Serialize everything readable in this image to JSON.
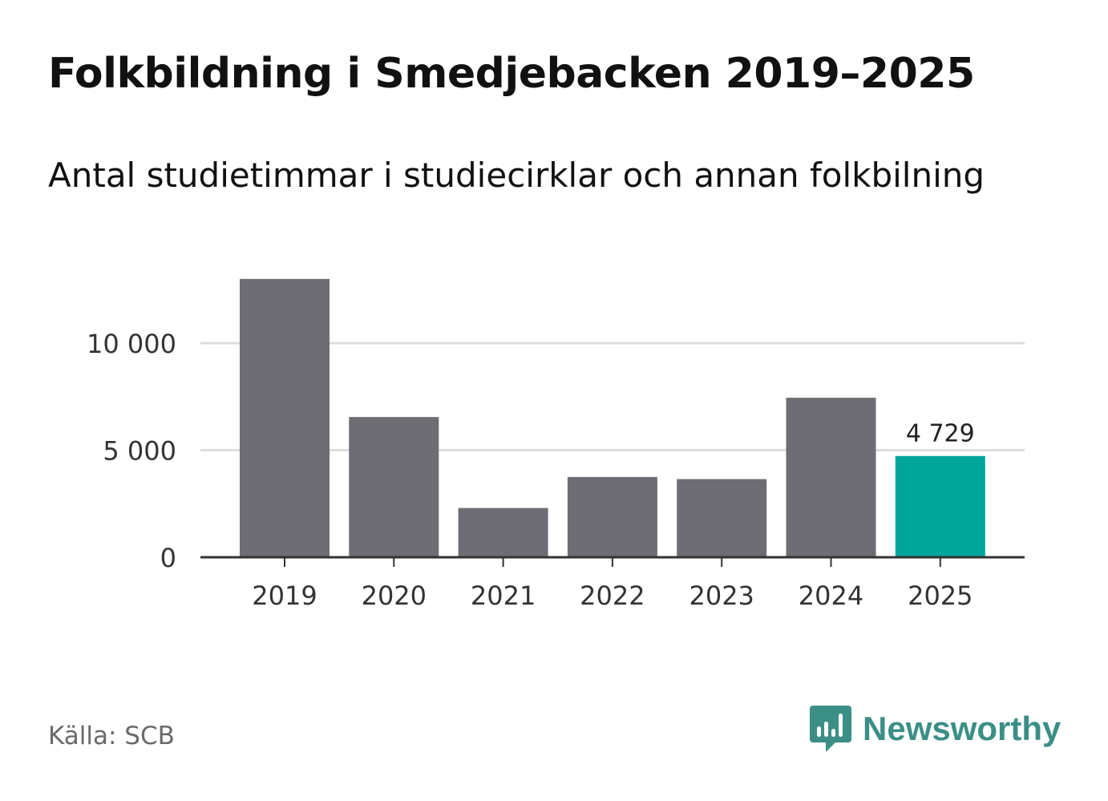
{
  "title": "Folkbildning i Smedjebacken 2019–2025",
  "subtitle": "Antal studietimmar i studiecirklar och annan folkbilning",
  "source": "Källa: SCB",
  "brand": {
    "name": "Newsworthy"
  },
  "colors": {
    "bar": "#6e6d73",
    "highlight": "#00a599",
    "grid": "#dddddd",
    "axis": "#333333",
    "brand": "#3b8f86"
  },
  "chart_data": {
    "type": "bar",
    "categories": [
      "2019",
      "2020",
      "2021",
      "2022",
      "2023",
      "2024",
      "2025"
    ],
    "values": [
      13000,
      6550,
      2300,
      3750,
      3650,
      7450,
      4729
    ],
    "highlight_index": 6,
    "data_labels": [
      {
        "index": 6,
        "text": "4 729"
      }
    ],
    "yticks": [
      {
        "value": 0,
        "label": "0"
      },
      {
        "value": 5000,
        "label": "5 000"
      },
      {
        "value": 10000,
        "label": "10 000"
      }
    ],
    "ylim": [
      0,
      13500
    ],
    "grid": true,
    "title": "Folkbildning i Smedjebacken 2019–2025",
    "xlabel": "",
    "ylabel": ""
  }
}
